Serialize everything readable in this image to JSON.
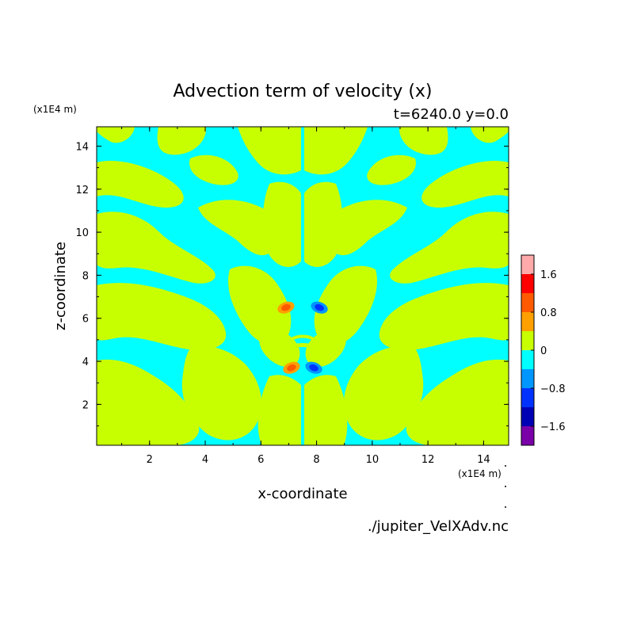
{
  "chart_data": {
    "type": "heatmap",
    "title": "Advection term of velocity (x)",
    "subtitle": "t=6240.0 y=0.0",
    "xlabel": "x-coordinate",
    "ylabel": "z-coordinate",
    "x_unit": "(x1E4 m)",
    "y_unit": "(x1E4 m)",
    "xlim": [
      0.1,
      14.9
    ],
    "ylim": [
      0.1,
      14.9
    ],
    "x_ticks": [
      2,
      4,
      6,
      8,
      10,
      12,
      14
    ],
    "y_ticks": [
      2,
      4,
      6,
      8,
      10,
      12,
      14
    ],
    "source_file": "./jupiter_VelXAdv.nc",
    "colorbar": {
      "levels": [
        -2.0,
        -1.6,
        -1.2,
        -0.8,
        -0.4,
        0,
        0.4,
        0.8,
        1.2,
        1.6,
        2.0
      ],
      "colors": [
        "#7a00a8",
        "#0000b4",
        "#0032ff",
        "#0096ff",
        "#00ffff",
        "#c8ff00",
        "#ffa000",
        "#ff5a00",
        "#ff0000",
        "#ffaaaa"
      ],
      "tick_values": [
        -1.6,
        -0.8,
        0,
        0.8,
        1.6
      ],
      "tick_labels": [
        "−1.6",
        "−0.8",
        "0",
        "0.8",
        "1.6"
      ]
    },
    "features": [
      {
        "kind": "positive-blob",
        "x": 6.9,
        "z": 6.5,
        "value": 1.0
      },
      {
        "kind": "negative-blob",
        "x": 8.1,
        "z": 6.5,
        "value": -0.9
      },
      {
        "kind": "positive-blob",
        "x": 7.1,
        "z": 3.7,
        "value": 1.0
      },
      {
        "kind": "negative-blob",
        "x": 7.9,
        "z": 3.7,
        "value": -1.1
      }
    ]
  }
}
